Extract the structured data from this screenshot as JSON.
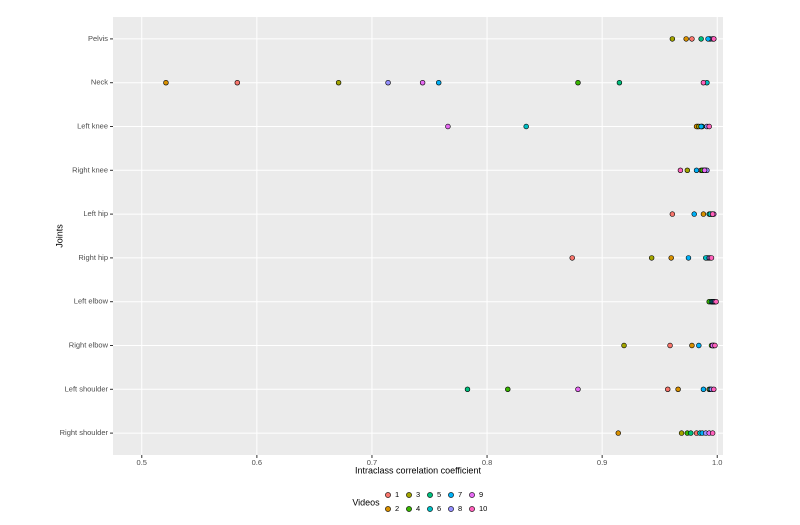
{
  "chart_data": {
    "type": "dot",
    "x_label": "Intraclass correlation coefficient",
    "y_label": "Joints",
    "legend_title": "Videos",
    "categories": [
      "Pelvis",
      "Neck",
      "Left knee",
      "Right knee",
      "Left hip",
      "Right hip",
      "Left elbow",
      "Right elbow",
      "Left shoulder",
      "Right shoulder"
    ],
    "xlim": [
      0.475,
      1.005
    ],
    "xticks": [
      0.5,
      0.6,
      0.7,
      0.8,
      0.9,
      {
        "value": 1,
        "label": "1.0"
      }
    ],
    "grid": true,
    "series": [
      {
        "name": "1",
        "color": "#F8766D",
        "values": [
          0.978,
          0.583,
          0.983,
          0.986,
          0.961,
          0.874,
          0.997,
          0.959,
          0.957,
          0.982
        ]
      },
      {
        "name": "2",
        "color": "#D89000",
        "values": [
          0.973,
          0.521,
          0.982,
          0.988,
          0.988,
          0.96,
          0.996,
          0.978,
          0.966,
          0.914
        ]
      },
      {
        "name": "3",
        "color": "#A3A500",
        "values": [
          0.961,
          0.671,
          0.984,
          0.974,
          0.994,
          0.943,
          0.995,
          0.919,
          0.993,
          0.969
        ]
      },
      {
        "name": "4",
        "color": "#39B600",
        "values": [
          0.993,
          0.879,
          0.986,
          0.987,
          0.995,
          0.991,
          0.993,
          0.995,
          0.818,
          0.974
        ]
      },
      {
        "name": "5",
        "color": "#00BF7D",
        "values": [
          0.986,
          0.915,
          0.987,
          0.989,
          0.993,
          0.992,
          0.995,
          0.996,
          0.783,
          0.977
        ]
      },
      {
        "name": "6",
        "color": "#00BFC4",
        "values": [
          0.994,
          0.991,
          0.834,
          0.99,
          0.994,
          0.99,
          0.996,
          0.997,
          0.994,
          0.985
        ]
      },
      {
        "name": "7",
        "color": "#00B0F6",
        "values": [
          0.992,
          0.758,
          0.986,
          0.982,
          0.98,
          0.975,
          0.997,
          0.984,
          0.988,
          0.987
        ]
      },
      {
        "name": "8",
        "color": "#9590FF",
        "values": [
          0.996,
          0.714,
          0.991,
          0.991,
          0.996,
          0.993,
          0.998,
          0.997,
          0.995,
          0.99
        ]
      },
      {
        "name": "9",
        "color": "#E76BF3",
        "values": [
          0.997,
          0.744,
          0.766,
          0.989,
          0.997,
          0.994,
          0.998,
          0.996,
          0.879,
          0.993
        ]
      },
      {
        "name": "10",
        "color": "#FF62BC",
        "values": [
          0.997,
          0.988,
          0.993,
          0.968,
          0.996,
          0.995,
          0.999,
          0.998,
          0.997,
          0.996
        ]
      }
    ]
  }
}
